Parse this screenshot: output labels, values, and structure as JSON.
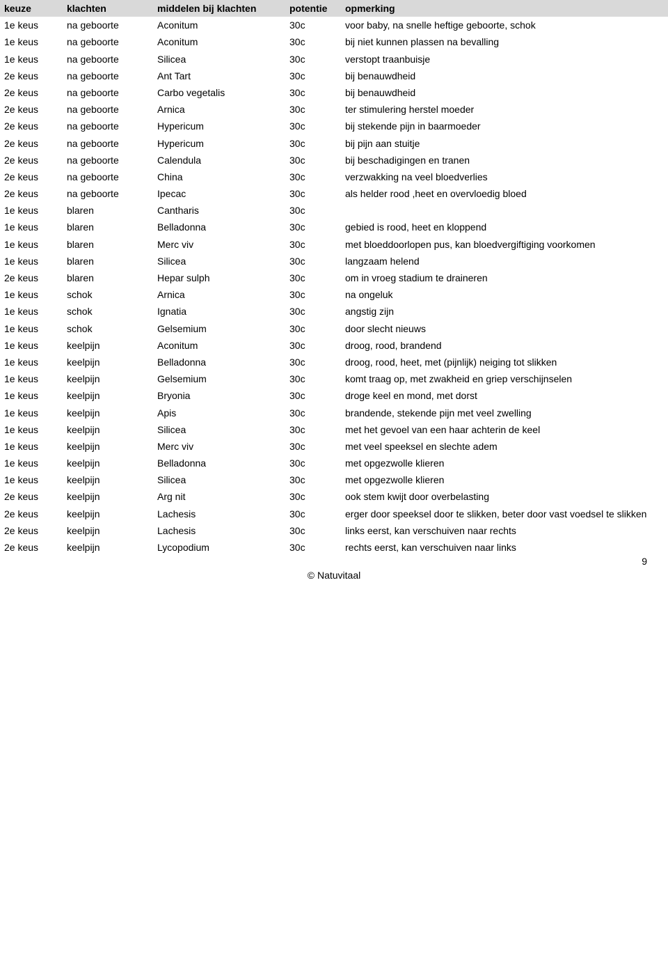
{
  "table": {
    "headers": {
      "keuze": "keuze",
      "klachten": "klachten",
      "middelen": "middelen bij klachten",
      "potentie": "potentie",
      "opmerking": "opmerking"
    },
    "rows": [
      {
        "keuze": "1e keus",
        "klachten": "na geboorte",
        "middelen": "Aconitum",
        "potentie": "30c",
        "opmerking": "voor baby, na snelle heftige geboorte, schok"
      },
      {
        "keuze": "1e keus",
        "klachten": "na geboorte",
        "middelen": "Aconitum",
        "potentie": "30c",
        "opmerking": "bij niet kunnen plassen na bevalling"
      },
      {
        "keuze": "1e keus",
        "klachten": "na geboorte",
        "middelen": "Silicea",
        "potentie": "30c",
        "opmerking": "verstopt traanbuisje"
      },
      {
        "keuze": "2e keus",
        "klachten": "na geboorte",
        "middelen": "Ant Tart",
        "potentie": "30c",
        "opmerking": "bij benauwdheid"
      },
      {
        "keuze": "2e keus",
        "klachten": "na geboorte",
        "middelen": "Carbo vegetalis",
        "potentie": "30c",
        "opmerking": "bij benauwdheid"
      },
      {
        "keuze": "2e keus",
        "klachten": "na geboorte",
        "middelen": "Arnica",
        "potentie": "30c",
        "opmerking": "ter stimulering herstel moeder"
      },
      {
        "keuze": "2e keus",
        "klachten": "na geboorte",
        "middelen": "Hypericum",
        "potentie": "30c",
        "opmerking": "bij stekende pijn in baarmoeder"
      },
      {
        "keuze": "2e keus",
        "klachten": "na geboorte",
        "middelen": "Hypericum",
        "potentie": "30c",
        "opmerking": "bij pijn aan stuitje"
      },
      {
        "keuze": "2e keus",
        "klachten": "na geboorte",
        "middelen": "Calendula",
        "potentie": "30c",
        "opmerking": "bij beschadigingen en tranen"
      },
      {
        "keuze": "2e keus",
        "klachten": "na geboorte",
        "middelen": "China",
        "potentie": "30c",
        "opmerking": "verzwakking na veel bloedverlies"
      },
      {
        "keuze": "2e keus",
        "klachten": "na geboorte",
        "middelen": "Ipecac",
        "potentie": "30c",
        "opmerking": "als helder rood ,heet en overvloedig bloed"
      },
      {
        "keuze": "1e keus",
        "klachten": "blaren",
        "middelen": "Cantharis",
        "potentie": "30c",
        "opmerking": ""
      },
      {
        "keuze": "1e keus",
        "klachten": "blaren",
        "middelen": "Belladonna",
        "potentie": "30c",
        "opmerking": "gebied is rood, heet en kloppend"
      },
      {
        "keuze": "1e keus",
        "klachten": "blaren",
        "middelen": "Merc viv",
        "potentie": "30c",
        "opmerking": "met bloeddoorlopen pus, kan bloedvergiftiging voorkomen"
      },
      {
        "keuze": "1e keus",
        "klachten": "blaren",
        "middelen": "Silicea",
        "potentie": "30c",
        "opmerking": "langzaam helend"
      },
      {
        "keuze": "2e keus",
        "klachten": "blaren",
        "middelen": "Hepar sulph",
        "potentie": "30c",
        "opmerking": "om in vroeg stadium te draineren"
      },
      {
        "keuze": "1e keus",
        "klachten": "schok",
        "middelen": "Arnica",
        "potentie": "30c",
        "opmerking": "na ongeluk"
      },
      {
        "keuze": "1e keus",
        "klachten": "schok",
        "middelen": "Ignatia",
        "potentie": "30c",
        "opmerking": "angstig zijn"
      },
      {
        "keuze": "1e keus",
        "klachten": "schok",
        "middelen": "Gelsemium",
        "potentie": "30c",
        "opmerking": "door slecht nieuws"
      },
      {
        "keuze": "1e keus",
        "klachten": "keelpijn",
        "middelen": "Aconitum",
        "potentie": "30c",
        "opmerking": "droog, rood, brandend"
      },
      {
        "keuze": "1e keus",
        "klachten": "keelpijn",
        "middelen": "Belladonna",
        "potentie": "30c",
        "opmerking": "droog, rood, heet, met (pijnlijk) neiging tot slikken"
      },
      {
        "keuze": "1e keus",
        "klachten": "keelpijn",
        "middelen": "Gelsemium",
        "potentie": "30c",
        "opmerking": "komt traag op, met zwakheid en griep verschijnselen"
      },
      {
        "keuze": "1e keus",
        "klachten": "keelpijn",
        "middelen": "Bryonia",
        "potentie": "30c",
        "opmerking": "droge keel en mond, met dorst"
      },
      {
        "keuze": "1e keus",
        "klachten": "keelpijn",
        "middelen": "Apis",
        "potentie": "30c",
        "opmerking": "brandende, stekende pijn met veel zwelling"
      },
      {
        "keuze": "1e keus",
        "klachten": "keelpijn",
        "middelen": "Silicea",
        "potentie": "30c",
        "opmerking": "met het gevoel van een haar achterin de keel"
      },
      {
        "keuze": "1e keus",
        "klachten": "keelpijn",
        "middelen": "Merc viv",
        "potentie": "30c",
        "opmerking": "met veel speeksel en slechte adem"
      },
      {
        "keuze": "1e keus",
        "klachten": "keelpijn",
        "middelen": "Belladonna",
        "potentie": "30c",
        "opmerking": "met opgezwolle klieren"
      },
      {
        "keuze": "1e keus",
        "klachten": "keelpijn",
        "middelen": "Silicea",
        "potentie": "30c",
        "opmerking": "met opgezwolle klieren"
      },
      {
        "keuze": "2e keus",
        "klachten": "keelpijn",
        "middelen": "Arg nit",
        "potentie": "30c",
        "opmerking": "ook stem kwijt door overbelasting"
      },
      {
        "keuze": "2e keus",
        "klachten": "keelpijn",
        "middelen": "Lachesis",
        "potentie": "30c",
        "opmerking": "erger door speeksel door te slikken, beter door vast voedsel te slikken"
      },
      {
        "keuze": "2e keus",
        "klachten": "keelpijn",
        "middelen": "Lachesis",
        "potentie": "30c",
        "opmerking": "links eerst, kan verschuiven naar rechts"
      },
      {
        "keuze": "2e keus",
        "klachten": "keelpijn",
        "middelen": "Lycopodium",
        "potentie": "30c",
        "opmerking": "rechts eerst, kan verschuiven naar links"
      }
    ]
  },
  "footer": {
    "copyright": "© Natuvitaal",
    "page_number": "9"
  }
}
